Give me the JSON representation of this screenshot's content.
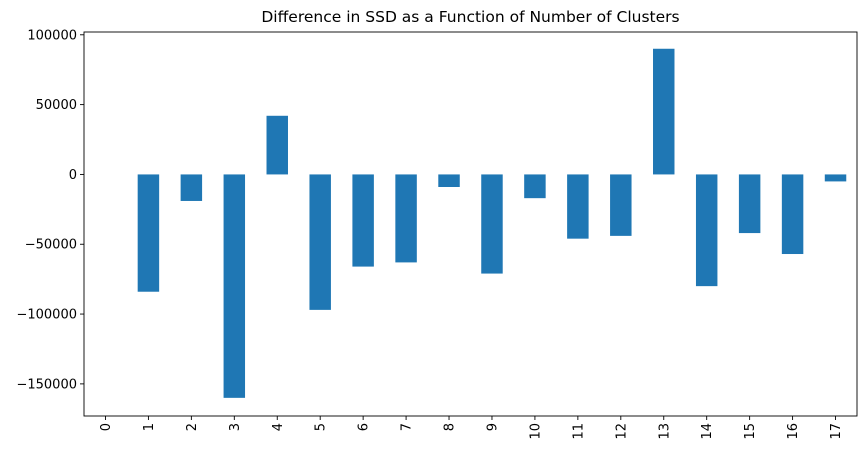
{
  "chart_data": {
    "type": "bar",
    "title": "Difference in SSD as a Function of Number of Clusters",
    "xlabel": "",
    "ylabel": "",
    "categories": [
      "0",
      "1",
      "2",
      "3",
      "4",
      "5",
      "6",
      "7",
      "8",
      "9",
      "10",
      "11",
      "12",
      "13",
      "14",
      "15",
      "16",
      "17"
    ],
    "values": [
      null,
      -84000,
      -19000,
      -160000,
      42000,
      -97000,
      -66000,
      -63000,
      -9000,
      -71000,
      -17000,
      -46000,
      -44000,
      90000,
      -80000,
      -42000,
      -57000,
      -5000
    ],
    "ylim": [
      -173000,
      102000
    ],
    "yticks": [
      100000,
      50000,
      0,
      -50000,
      -100000,
      -150000
    ],
    "ytick_labels": [
      "100000",
      "50000",
      "0",
      "−50000",
      "−100000",
      "−150000"
    ],
    "bar_color": "#1f77b4",
    "grid": false,
    "legend": "none"
  }
}
